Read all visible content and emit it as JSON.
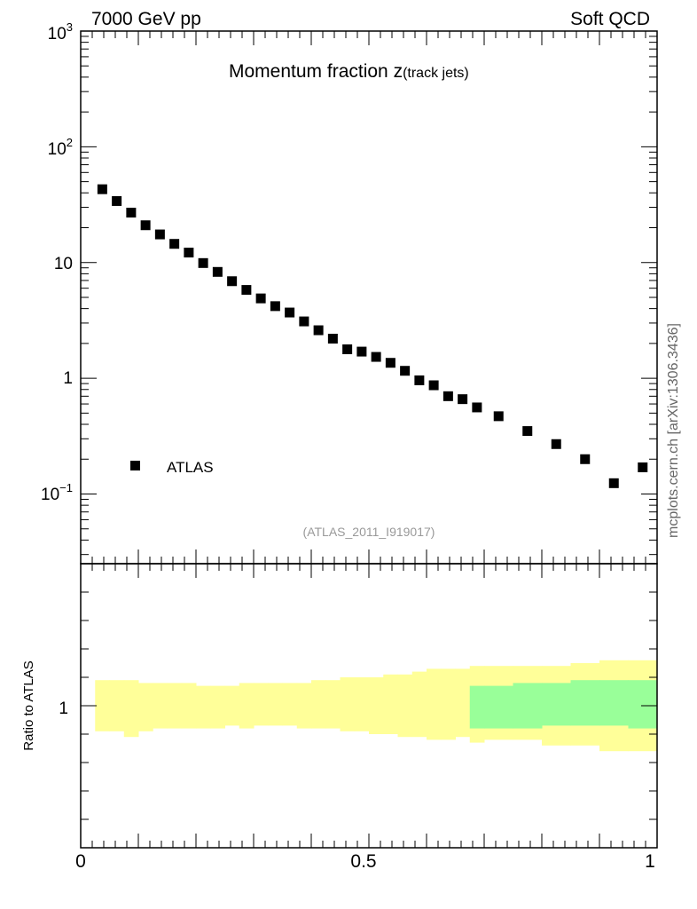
{
  "header": {
    "left_label": "7000 GeV pp",
    "right_label": "Soft QCD"
  },
  "side_label": "mcplots.cern.ch [arXiv:1306.3436]",
  "chart_data": [
    {
      "type": "scatter",
      "title_main": "Momentum fraction ",
      "title_z": "z",
      "title_sub": "(track jets)",
      "analysis_tag": "(ATLAS_2011_I919017)",
      "y_scale": "log",
      "ylim": [
        0.025,
        1000
      ],
      "xlim": [
        0,
        1
      ],
      "y_tick_labels": {
        "1000": [
          "10",
          "3"
        ],
        "100": [
          "10",
          "2"
        ],
        "10": [
          "10",
          ""
        ],
        "1": [
          "1",
          ""
        ],
        "0.1": [
          "10",
          "−1"
        ]
      },
      "grid": false,
      "legend": {
        "position": "bottom-left",
        "label": "ATLAS",
        "marker": "square",
        "color": "#000000"
      },
      "series": [
        {
          "name": "ATLAS",
          "x": [
            0.0375,
            0.0625,
            0.0875,
            0.1125,
            0.1375,
            0.1625,
            0.1875,
            0.2125,
            0.2375,
            0.2625,
            0.2875,
            0.3125,
            0.3375,
            0.3625,
            0.3875,
            0.4125,
            0.4375,
            0.4625,
            0.4875,
            0.5125,
            0.5375,
            0.5625,
            0.5875,
            0.6125,
            0.6375,
            0.6625,
            0.6875,
            0.725,
            0.775,
            0.825,
            0.875,
            0.925,
            0.975
          ],
          "y": [
            43,
            34,
            27,
            21,
            17.5,
            14.5,
            12.2,
            9.9,
            8.3,
            6.9,
            5.8,
            4.9,
            4.2,
            3.7,
            3.1,
            2.6,
            2.2,
            1.78,
            1.7,
            1.53,
            1.36,
            1.16,
            0.96,
            0.87,
            0.7,
            0.66,
            0.56,
            0.47,
            0.35,
            0.27,
            0.2,
            0.124,
            0.17
          ]
        }
      ]
    },
    {
      "type": "area",
      "ylabel": "Ratio to ATLAS",
      "xlim": [
        0,
        1
      ],
      "ylim": [
        0.5,
        1.5
      ],
      "x_tick_labels": [
        "0",
        "0.5",
        "1"
      ],
      "y_tick_label": "1",
      "colors": {
        "total_band": "#ffff99",
        "stat_band": "#99ff99"
      },
      "bins_x": [
        0.025,
        0.05,
        0.075,
        0.1,
        0.125,
        0.15,
        0.175,
        0.2,
        0.225,
        0.25,
        0.275,
        0.3,
        0.325,
        0.35,
        0.375,
        0.4,
        0.425,
        0.45,
        0.475,
        0.5,
        0.525,
        0.55,
        0.575,
        0.6,
        0.625,
        0.65,
        0.675,
        0.7,
        0.75,
        0.8,
        0.85,
        0.9,
        0.95,
        1.0
      ],
      "total_band_low": [
        0.91,
        0.91,
        0.89,
        0.91,
        0.92,
        0.92,
        0.92,
        0.92,
        0.92,
        0.93,
        0.92,
        0.93,
        0.93,
        0.93,
        0.92,
        0.92,
        0.92,
        0.91,
        0.91,
        0.9,
        0.9,
        0.89,
        0.89,
        0.88,
        0.88,
        0.89,
        0.87,
        0.88,
        0.88,
        0.86,
        0.86,
        0.84,
        0.84,
        0.84
      ],
      "total_band_high": [
        1.09,
        1.09,
        1.09,
        1.08,
        1.08,
        1.08,
        1.08,
        1.07,
        1.07,
        1.07,
        1.08,
        1.08,
        1.08,
        1.08,
        1.08,
        1.09,
        1.09,
        1.1,
        1.1,
        1.1,
        1.11,
        1.11,
        1.12,
        1.13,
        1.13,
        1.13,
        1.14,
        1.14,
        1.14,
        1.14,
        1.15,
        1.16,
        1.16,
        1.16
      ],
      "stat_band_start": 0.675,
      "stat_band_low": [
        0.92,
        0.92,
        0.92,
        0.93,
        0.93,
        0.93,
        0.92
      ],
      "stat_band_high": [
        1.07,
        1.07,
        1.08,
        1.08,
        1.09,
        1.09,
        1.09
      ]
    }
  ]
}
